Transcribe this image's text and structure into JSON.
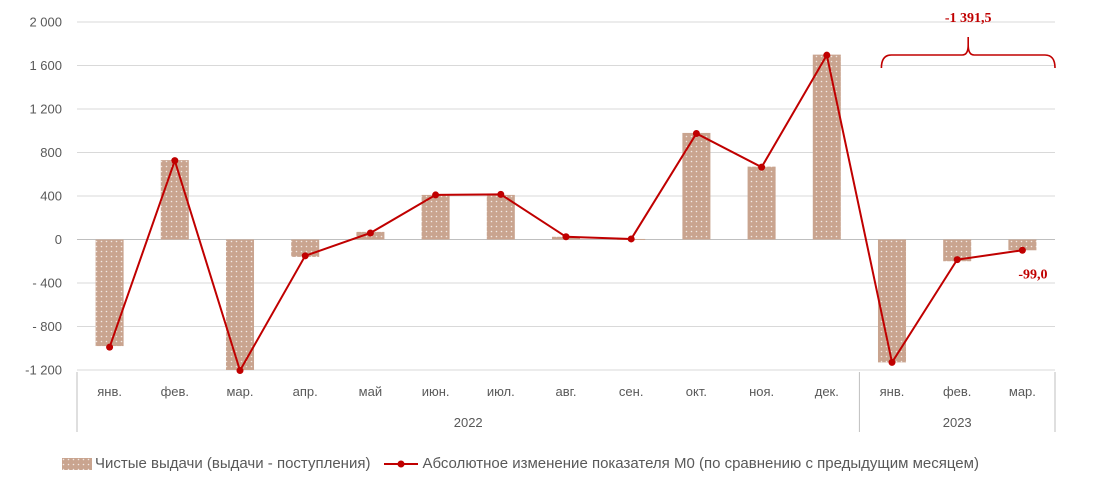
{
  "chart_data": {
    "type": "bar",
    "categories": [
      "янв.",
      "фев.",
      "мар.",
      "апр.",
      "май",
      "июн.",
      "июл.",
      "авг.",
      "сен.",
      "окт.",
      "ноя.",
      "дек.",
      "янв.",
      "фев.",
      "мар."
    ],
    "year_groups": [
      {
        "label": "2022",
        "count": 12
      },
      {
        "label": "2023",
        "count": 3
      }
    ],
    "ylim": [
      -1200,
      2000
    ],
    "yticks": [
      -1200,
      -800,
      -400,
      0,
      400,
      800,
      1200,
      1600,
      2000
    ],
    "ytick_labels": [
      "-1 200",
      "- 800",
      "- 400",
      "0",
      "400",
      "800",
      "1 200",
      "1 600",
      "2 000"
    ],
    "grid": true,
    "series": [
      {
        "name": "Чистые выдачи (выдачи - поступления)",
        "type": "bar",
        "color": "#c9a48f",
        "values": [
          -980,
          730,
          -1200,
          -160,
          70,
          410,
          410,
          25,
          5,
          980,
          670,
          1700,
          -1130,
          -200,
          -99
        ]
      },
      {
        "name": "Абсолютное изменение показателя М0 (по сравнению с предыдущим месяцем)",
        "type": "line",
        "color": "#c00000",
        "values": [
          -990,
          725,
          -1205,
          -150,
          60,
          410,
          415,
          25,
          5,
          975,
          665,
          1695,
          -1130,
          -185,
          -99
        ]
      }
    ],
    "annotations": [
      {
        "text": "-1 391,5",
        "spans": [
          "янв.",
          "мар."
        ],
        "group": "2023"
      },
      {
        "text": "-99,0",
        "category_index": 14
      }
    ],
    "legend_position": "bottom"
  }
}
